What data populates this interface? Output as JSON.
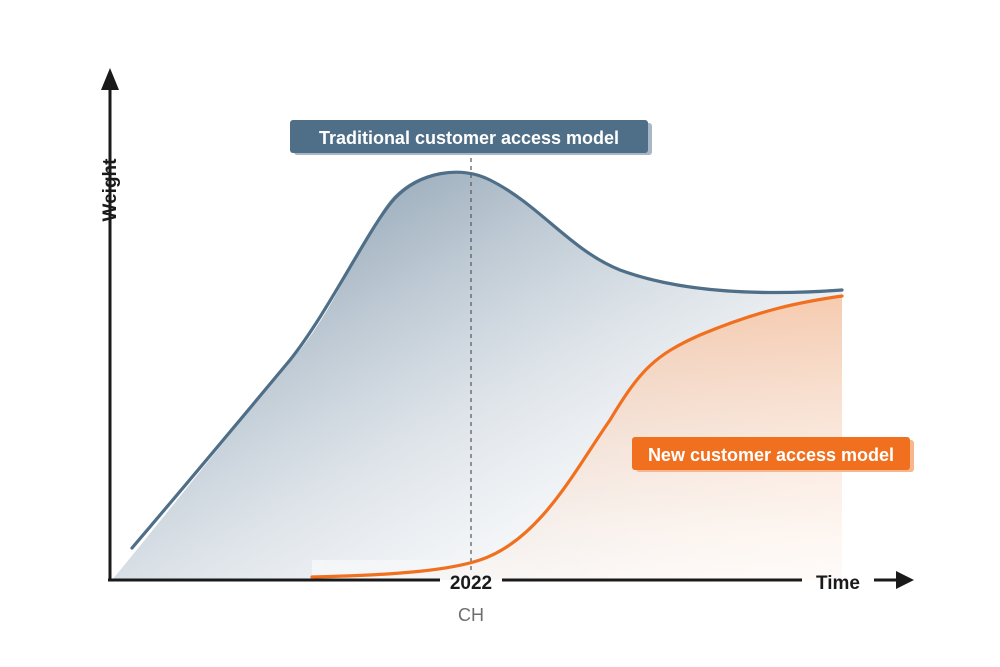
{
  "colors": {
    "traditional": "#4f6e87",
    "new": "#f07020",
    "axis": "#1a1a1a"
  },
  "axes": {
    "y_label": "Weight",
    "x_label": "Time"
  },
  "marker": {
    "tick_label": "2022",
    "sub_label": "CH"
  },
  "series": {
    "traditional": {
      "name": "Traditional customer access model"
    },
    "new": {
      "name": "New customer access model"
    }
  }
}
